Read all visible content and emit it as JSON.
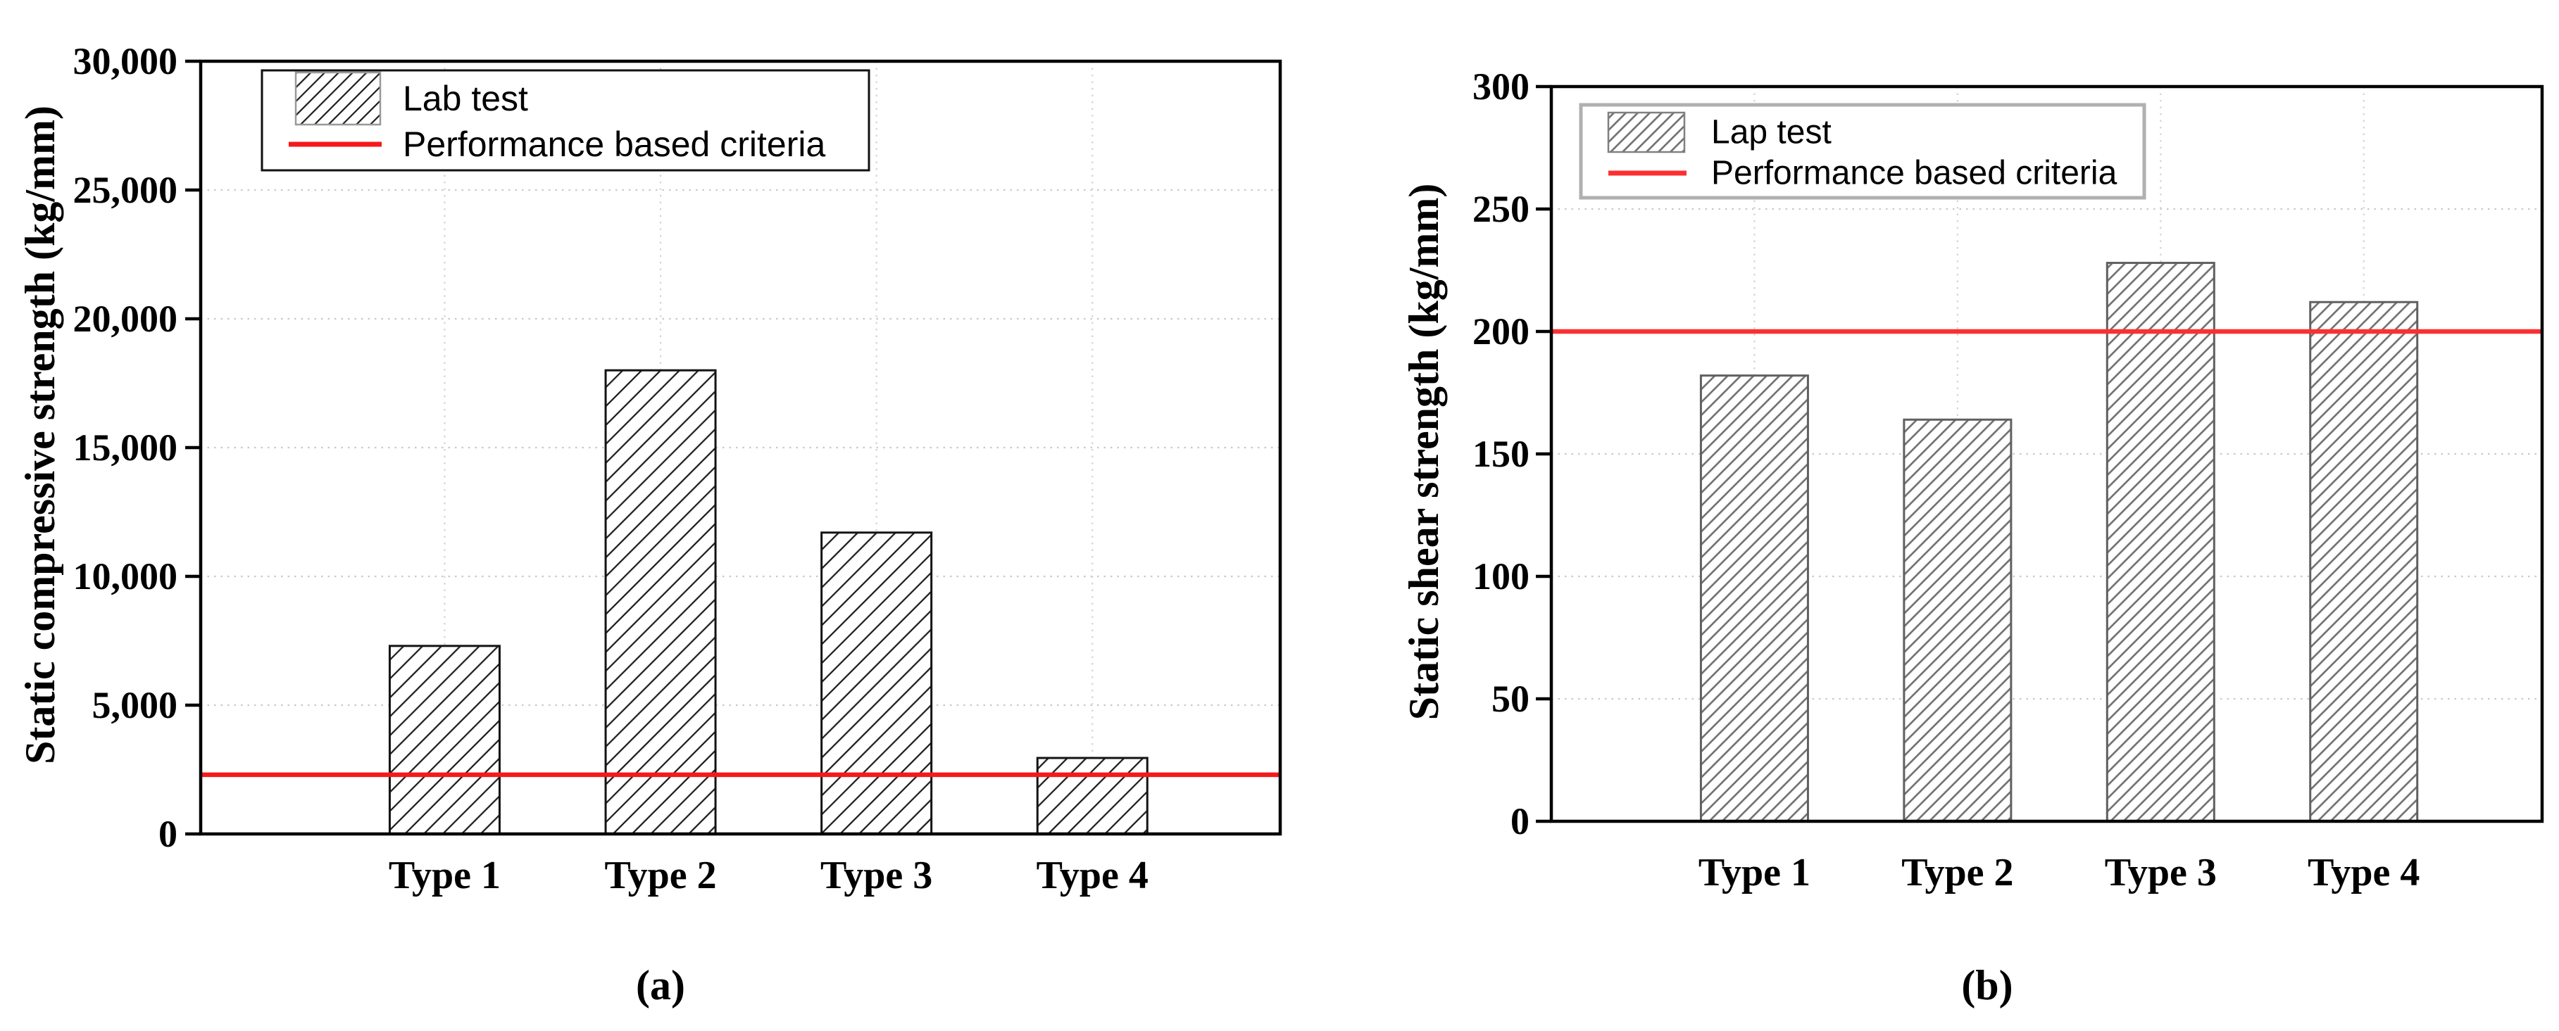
{
  "figure": {
    "background": "#ffffff",
    "captions": {
      "a": "(a)",
      "b": "(b)"
    }
  },
  "chart_data": [
    {
      "id": "a",
      "type": "bar",
      "title": "",
      "xlabel": "",
      "ylabel": "Static compressive strength (kg/mm)",
      "categories": [
        "Type 1",
        "Type 2",
        "Type 3",
        "Type 4"
      ],
      "series": [
        {
          "name": "Lab test",
          "values": [
            7300,
            18000,
            11700,
            2950
          ]
        }
      ],
      "criteria_line": {
        "label": "Performance based criteria",
        "value": 2300
      },
      "ylim": [
        0,
        30000
      ],
      "yticks": [
        0,
        5000,
        10000,
        15000,
        20000,
        25000,
        30000
      ],
      "ytick_labels": [
        "0",
        "5,000",
        "10,000",
        "15,000",
        "20,000",
        "25,000",
        "30,000"
      ],
      "legend_position": "upper left",
      "grid": "dotted",
      "caption": "(a)",
      "colors": {
        "criteria": "#f5191c",
        "bar_edge": "#141414",
        "hatch": "#1c1c1c",
        "legend_border": "#111111",
        "swatch_border": "#999999"
      }
    },
    {
      "id": "b",
      "type": "bar",
      "title": "",
      "xlabel": "",
      "ylabel": "Static shear strength (kg/mm)",
      "categories": [
        "Type 1",
        "Type 2",
        "Type 3",
        "Type 4"
      ],
      "series": [
        {
          "name": "Lap test",
          "values": [
            182,
            164,
            228,
            212
          ]
        }
      ],
      "criteria_line": {
        "label": "Performance based criteria",
        "value": 200
      },
      "ylim": [
        0,
        300
      ],
      "yticks": [
        0,
        50,
        100,
        150,
        200,
        250,
        300
      ],
      "ytick_labels": [
        "0",
        "50",
        "100",
        "150",
        "200",
        "250",
        "300"
      ],
      "legend_position": "upper left",
      "grid": "dotted",
      "caption": "(b)",
      "colors": {
        "criteria": "#fb3032",
        "bar_edge": "#606060",
        "hatch": "#6e6e6e",
        "legend_border": "#b0b0b0",
        "swatch_border": "#808080"
      }
    }
  ]
}
